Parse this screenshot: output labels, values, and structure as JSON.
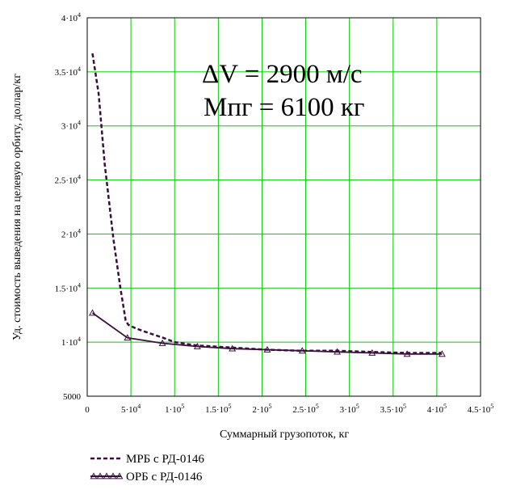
{
  "chart_data": {
    "type": "line",
    "title": "",
    "xlabel": "Суммарный грузопоток, кг",
    "ylabel": "Уд. стоимость выведения на целевую орбиту, доллар/кг",
    "xlim": [
      0,
      450000
    ],
    "ylim": [
      5000,
      40000
    ],
    "grid": true,
    "x_ticks": [
      {
        "value": 0,
        "mant": "0",
        "exp": ""
      },
      {
        "value": 50000,
        "mant": "5·10",
        "exp": "4"
      },
      {
        "value": 100000,
        "mant": "1·10",
        "exp": "5"
      },
      {
        "value": 150000,
        "mant": "1.5·10",
        "exp": "5"
      },
      {
        "value": 200000,
        "mant": "2·10",
        "exp": "5"
      },
      {
        "value": 250000,
        "mant": "2.5·10",
        "exp": "5"
      },
      {
        "value": 300000,
        "mant": "3·10",
        "exp": "5"
      },
      {
        "value": 350000,
        "mant": "3.5·10",
        "exp": "5"
      },
      {
        "value": 400000,
        "mant": "4·10",
        "exp": "5"
      },
      {
        "value": 450000,
        "mant": "4.5·10",
        "exp": "5"
      }
    ],
    "y_ticks": [
      {
        "value": 5000,
        "mant": "5000",
        "exp": ""
      },
      {
        "value": 10000,
        "mant": "1·10",
        "exp": "4"
      },
      {
        "value": 15000,
        "mant": "1.5·10",
        "exp": "4"
      },
      {
        "value": 20000,
        "mant": "2·10",
        "exp": "4"
      },
      {
        "value": 25000,
        "mant": "2.5·10",
        "exp": "4"
      },
      {
        "value": 30000,
        "mant": "3·10",
        "exp": "4"
      },
      {
        "value": 35000,
        "mant": "3.5·10",
        "exp": "4"
      },
      {
        "value": 40000,
        "mant": "4·10",
        "exp": "4"
      }
    ],
    "annotations": [
      "ΔV = 2900 м/с",
      "Мпг = 6100 кг"
    ],
    "legend_position": "bottom-left",
    "series": [
      {
        "name": "МРБ с РД-0146",
        "style": "dashed",
        "marker": "none",
        "color": "#3a0f3d",
        "x": [
          6000,
          13000,
          20000,
          30000,
          38000,
          44000,
          47000,
          55000,
          65000,
          76000,
          87000,
          100000,
          125000,
          165000,
          205000,
          245000,
          285000,
          325000,
          365000,
          405000
        ],
        "y": [
          36700,
          33000,
          26500,
          19500,
          15000,
          12000,
          11600,
          11300,
          11000,
          10700,
          10400,
          10000,
          9700,
          9500,
          9300,
          9200,
          9200,
          9100,
          9000,
          9000
        ]
      },
      {
        "name": "ОРБ с РД-0146",
        "style": "solid",
        "marker": "triangle",
        "color": "#3a0f3d",
        "x": [
          6000,
          46000,
          86000,
          126000,
          166000,
          206000,
          246000,
          286000,
          326000,
          366000,
          406000
        ],
        "y": [
          12700,
          10400,
          9900,
          9600,
          9400,
          9300,
          9200,
          9100,
          9000,
          8900,
          8900
        ]
      }
    ]
  }
}
